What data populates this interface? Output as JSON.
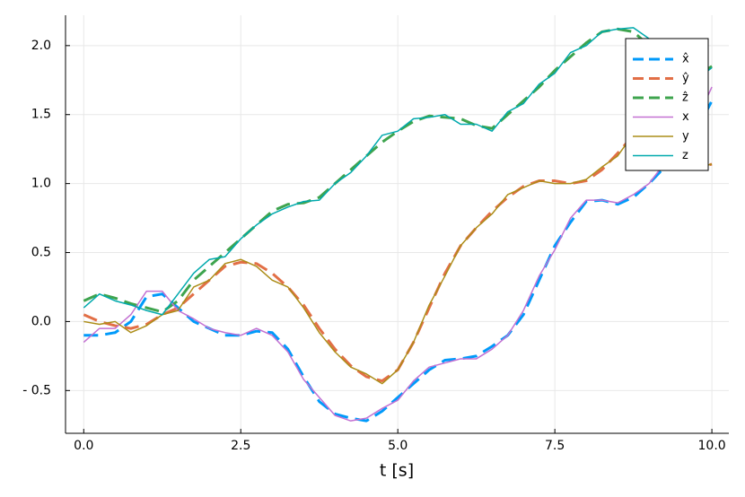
{
  "chart_data": {
    "type": "line",
    "x_label": "t [s]",
    "x": [
      0,
      0.25,
      0.5,
      0.75,
      1,
      1.25,
      1.5,
      1.75,
      2,
      2.25,
      2.5,
      2.75,
      3,
      3.25,
      3.5,
      3.75,
      4,
      4.25,
      4.5,
      4.75,
      5,
      5.25,
      5.5,
      5.75,
      6,
      6.25,
      6.5,
      6.75,
      7,
      7.25,
      7.5,
      7.75,
      8,
      8.25,
      8.5,
      8.75,
      9,
      9.25,
      9.5,
      9.75,
      10
    ],
    "series": [
      {
        "name": "x̂",
        "color": "#009AFA",
        "line_style": "dashed",
        "values": [
          -0.1,
          -0.1,
          -0.08,
          0.0,
          0.18,
          0.2,
          0.1,
          0.0,
          -0.05,
          -0.1,
          -0.1,
          -0.07,
          -0.08,
          -0.2,
          -0.4,
          -0.58,
          -0.67,
          -0.7,
          -0.72,
          -0.65,
          -0.55,
          -0.45,
          -0.35,
          -0.28,
          -0.27,
          -0.25,
          -0.18,
          -0.1,
          0.05,
          0.3,
          0.55,
          0.72,
          0.87,
          0.88,
          0.85,
          0.9,
          1.0,
          1.12,
          1.25,
          1.38,
          1.6
        ]
      },
      {
        "name": "ŷ",
        "color": "#E26F46",
        "line_style": "dashed",
        "values": [
          0.05,
          0.0,
          -0.03,
          -0.05,
          -0.02,
          0.05,
          0.1,
          0.2,
          0.3,
          0.4,
          0.43,
          0.42,
          0.35,
          0.25,
          0.12,
          -0.05,
          -0.2,
          -0.32,
          -0.4,
          -0.43,
          -0.35,
          -0.15,
          0.1,
          0.35,
          0.55,
          0.68,
          0.8,
          0.9,
          0.98,
          1.02,
          1.02,
          1.0,
          1.02,
          1.1,
          1.22,
          1.35,
          1.4,
          1.35,
          1.2,
          1.12,
          1.14
        ]
      },
      {
        "name": "ẑ",
        "color": "#3EA44E",
        "line_style": "dashed",
        "values": [
          0.15,
          0.2,
          0.17,
          0.13,
          0.1,
          0.07,
          0.15,
          0.3,
          0.4,
          0.5,
          0.6,
          0.7,
          0.8,
          0.85,
          0.86,
          0.9,
          1.0,
          1.1,
          1.2,
          1.3,
          1.38,
          1.45,
          1.49,
          1.48,
          1.47,
          1.42,
          1.4,
          1.5,
          1.6,
          1.7,
          1.82,
          1.92,
          2.02,
          2.1,
          2.12,
          2.1,
          2.0,
          1.9,
          1.85,
          1.78,
          1.85
        ]
      },
      {
        "name": "x",
        "color": "#C371D2",
        "line_style": "solid",
        "values": [
          -0.15,
          -0.05,
          -0.05,
          0.05,
          0.22,
          0.22,
          0.08,
          0.02,
          -0.05,
          -0.08,
          -0.1,
          -0.05,
          -0.1,
          -0.22,
          -0.42,
          -0.55,
          -0.68,
          -0.72,
          -0.7,
          -0.63,
          -0.57,
          -0.43,
          -0.33,
          -0.3,
          -0.27,
          -0.27,
          -0.2,
          -0.1,
          0.08,
          0.33,
          0.52,
          0.75,
          0.88,
          0.88,
          0.86,
          0.92,
          1.0,
          1.15,
          1.25,
          1.45,
          1.7
        ]
      },
      {
        "name": "y",
        "color": "#AC8D18",
        "line_style": "solid",
        "values": [
          0.0,
          -0.02,
          0.0,
          -0.08,
          -0.03,
          0.05,
          0.08,
          0.25,
          0.3,
          0.42,
          0.45,
          0.4,
          0.3,
          0.25,
          0.1,
          -0.08,
          -0.22,
          -0.33,
          -0.38,
          -0.45,
          -0.35,
          -0.15,
          0.12,
          0.33,
          0.55,
          0.68,
          0.78,
          0.92,
          0.97,
          1.02,
          1.0,
          1.0,
          1.03,
          1.12,
          1.2,
          1.36,
          1.38,
          1.3,
          1.2,
          1.12,
          1.14
        ]
      },
      {
        "name": "z",
        "color": "#00A9AD",
        "line_style": "solid",
        "values": [
          0.1,
          0.2,
          0.15,
          0.12,
          0.08,
          0.05,
          0.2,
          0.35,
          0.45,
          0.47,
          0.6,
          0.7,
          0.78,
          0.83,
          0.87,
          0.88,
          1.0,
          1.08,
          1.2,
          1.35,
          1.38,
          1.47,
          1.48,
          1.5,
          1.43,
          1.43,
          1.38,
          1.52,
          1.58,
          1.72,
          1.8,
          1.95,
          2.0,
          2.1,
          2.12,
          2.13,
          2.05,
          1.93,
          1.83,
          1.75,
          1.84
        ]
      }
    ],
    "xlim": [
      -0.29,
      10.27
    ],
    "ylim": [
      -0.81,
      2.22
    ],
    "xticks": [
      {
        "value": 0,
        "label": "0.0"
      },
      {
        "value": 2.5,
        "label": "2.5"
      },
      {
        "value": 5,
        "label": "5.0"
      },
      {
        "value": 7.5,
        "label": "7.5"
      },
      {
        "value": 10,
        "label": "10.0"
      }
    ],
    "yticks": [
      {
        "value": -0.5,
        "label": "- 0.5"
      },
      {
        "value": 0,
        "label": "0.0"
      },
      {
        "value": 0.5,
        "label": "0.5"
      },
      {
        "value": 1,
        "label": "1.0"
      },
      {
        "value": 1.5,
        "label": "1.5"
      },
      {
        "value": 2,
        "label": "2.0"
      }
    ],
    "grid": true,
    "legend": "top-right"
  }
}
